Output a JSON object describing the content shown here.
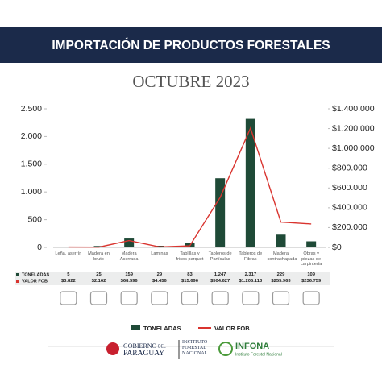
{
  "chart_data": {
    "type": "bar",
    "title": "IMPORTACIÓN DE PRODUCTOS FORESTALES",
    "subtitle": "OCTUBRE 2023",
    "categories": [
      "Leña, aserrín",
      "Madera en bruto",
      "Madera Aserrada",
      "Laminas",
      "Tablillas y frisos parquet",
      "Tableros de Partículas",
      "Tableros de Fibras",
      "Madera contrachapada",
      "Obras y piezas de carpintería"
    ],
    "series": [
      {
        "name": "TONELADAS",
        "type": "bar",
        "color": "#1f4a37",
        "values": [
          5,
          25,
          159,
          29,
          83,
          1247,
          2317,
          229,
          109
        ],
        "value_labels": [
          "5",
          "25",
          "159",
          "29",
          "83",
          "1.247",
          "2.317",
          "229",
          "109"
        ]
      },
      {
        "name": "VALOR FOB",
        "type": "line",
        "axis": "y2",
        "color": "#d9342f",
        "values": [
          3822,
          2162,
          68596,
          4456,
          15696,
          504627,
          1205113,
          255963,
          236759
        ],
        "value_labels": [
          "$3.822",
          "$2.162",
          "$68.596",
          "$4.456",
          "$15.696",
          "$504.627",
          "$1.205.113",
          "$255.963",
          "$236.759"
        ]
      }
    ],
    "ylim": [
      0,
      2500
    ],
    "yticks": [
      0,
      500,
      {
        "value": 1000,
        "label": "1.000"
      },
      {
        "value": 1500,
        "label": "1.500"
      },
      {
        "value": 2000,
        "label": "2.000"
      },
      {
        "value": 2500,
        "label": "2.500"
      }
    ],
    "y2lim": [
      0,
      1400000
    ],
    "y2ticks": [
      {
        "value": 0,
        "label": "$0"
      },
      {
        "value": 200000,
        "label": "$200.000"
      },
      {
        "value": 400000,
        "label": "$400.000"
      },
      {
        "value": 600000,
        "label": "$600.000"
      },
      {
        "value": 800000,
        "label": "$800.000"
      },
      {
        "value": 1000000,
        "label": "$1.000.000"
      },
      {
        "value": 1200000,
        "label": "$1.200.000"
      },
      {
        "value": 1400000,
        "label": "$1.400.000"
      }
    ],
    "grid": false
  },
  "footer": {
    "gov_top": "GOBIERNO",
    "gov_del": "DEL",
    "gov_country": "PARAGUAY",
    "inst": "INSTITUTO FORESTAL NACIONAL",
    "infona": "INFONA",
    "infona_sub": "Instituto Forestal Nacional"
  }
}
